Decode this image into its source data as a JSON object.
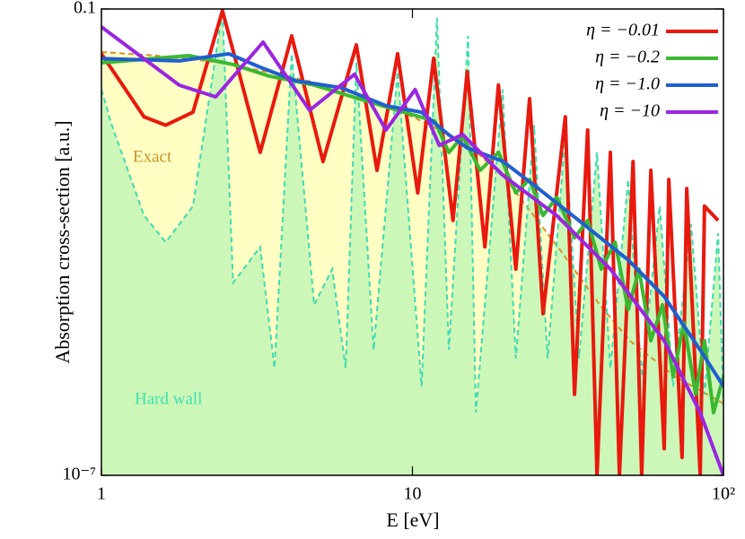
{
  "chart_data": {
    "type": "line",
    "xlabel": "E [eV]",
    "ylabel": "Absorption cross-section [a.u.]",
    "xscale": "log",
    "yscale": "log",
    "xlim": [
      1,
      100
    ],
    "xticks": [
      1,
      10,
      {
        "value": 100,
        "label": "10²"
      }
    ],
    "ylim": [
      1e-07,
      0.1
    ],
    "yticks": [
      {
        "value": 0.1,
        "label": "0.1"
      },
      {
        "value": 1e-07,
        "label": "10⁻⁷"
      }
    ],
    "legend": "upper right",
    "areas": [
      {
        "name": "Exact",
        "fill": "#ffffc4",
        "color": "#d9902a",
        "x": [
          1,
          1.5,
          2.45,
          4,
          6,
          10,
          15,
          20,
          30,
          40,
          50,
          70,
          100
        ],
        "values": [
          0.0279,
          0.0251,
          0.0203,
          0.0136,
          0.0092,
          0.0041,
          0.00186,
          0.00064,
          7.7e-05,
          1.56e-05,
          5.4e-06,
          1.86e-06,
          8.4e-07
        ]
      },
      {
        "name": "Hard wall",
        "fill": "#ccf7b8",
        "color": "#3ddcb0",
        "x": [
          1,
          1.08,
          1.37,
          1.61,
          1.97,
          2.45,
          2.65,
          3.24,
          3.6,
          4.09,
          4.83,
          5.52,
          6.1,
          6.6,
          7.5,
          8.96,
          10.7,
          12.0,
          13.1,
          15.1,
          16.0,
          19.5,
          21.5,
          24.6,
          27.2,
          31.0,
          34.3,
          39.2,
          43.3,
          49.4,
          54.6,
          62.4,
          68.9,
          78.7,
          86.9,
          96.1,
          100
        ],
        "values": [
          0.0092,
          0.0032,
          0.00022,
          0.0001,
          0.00029,
          0.095,
          3e-05,
          8.7e-05,
          2.4e-06,
          0.0265,
          1.56e-05,
          4.5e-05,
          2.4e-06,
          0.0203,
          4.1e-06,
          0.0156,
          1.4e-06,
          0.077,
          4.1e-06,
          0.045,
          6.4e-07,
          0.0092,
          3.2e-06,
          0.0032,
          3.2e-06,
          0.0024,
          3.2e-06,
          0.00143,
          2.4e-06,
          0.00064,
          1.86e-06,
          0.00029,
          1.4e-06,
          0.00017,
          1.1e-06,
          0.00013,
          8.4e-07
        ]
      }
    ],
    "series": [
      {
        "name": "η = −0.01",
        "color": "#e8190e",
        "x": [
          1,
          1.37,
          1.61,
          1.97,
          2.45,
          3.24,
          4.09,
          5.16,
          6.6,
          7.69,
          8.96,
          10.4,
          11.7,
          13.5,
          15.0,
          17.1,
          18.9,
          21.5,
          23.8,
          26.3,
          31.0,
          33.2,
          36.6,
          39.2,
          43.3,
          46.3,
          51.2,
          54.6,
          58.4,
          64.5,
          66.7,
          73.6,
          76.2,
          84.2,
          86.9,
          96.1
        ],
        "values": [
          0.0265,
          0.0041,
          0.0032,
          0.0047,
          0.095,
          0.00143,
          0.045,
          0.00109,
          0.0345,
          0.00084,
          0.0265,
          0.00043,
          0.0232,
          0.00019,
          0.0156,
          8.7e-05,
          0.0105,
          4.5e-05,
          0.007,
          1.2e-05,
          0.0041,
          1.1e-06,
          0.00277,
          1e-07,
          0.00143,
          1e-07,
          0.00109,
          1e-07,
          0.00084,
          2.2e-07,
          0.00064,
          1.7e-07,
          0.00049,
          1e-07,
          0.00029,
          0.00019
        ]
      },
      {
        "name": "η = −0.2",
        "color": "#3cb832",
        "x": [
          1,
          1.91,
          2.65,
          3.46,
          4.83,
          6.73,
          9.39,
          11.8,
          13.1,
          14.5,
          16.5,
          18.9,
          21.5,
          23.8,
          26.3,
          29.1,
          33.2,
          36.6,
          40.5,
          44.8,
          49.4,
          53.5,
          58.4,
          63.7,
          68.9,
          74.6,
          81.4,
          86.9,
          92.9,
          100
        ],
        "values": [
          0.0203,
          0.0251,
          0.0193,
          0.0137,
          0.0105,
          0.007,
          0.0047,
          0.0036,
          0.00143,
          0.0023,
          0.00084,
          0.00143,
          0.00043,
          0.00064,
          0.00022,
          0.00038,
          0.000114,
          0.00019,
          4.5e-05,
          0.0001,
          1.36e-05,
          4.5e-05,
          5.4e-06,
          1.56e-05,
          1.86e-06,
          9.2e-06,
          1.1e-06,
          5.4e-06,
          6.4e-07,
          1.86e-06
        ]
      },
      {
        "name": "η = −1.0",
        "color": "#1f5fd0",
        "x": [
          1,
          1.78,
          2.57,
          3.24,
          4.23,
          5.9,
          8.22,
          10.7,
          13.1,
          15.0,
          19.5,
          25.4,
          35.5,
          49.4,
          64.5,
          84.2,
          100
        ],
        "values": [
          0.023,
          0.0215,
          0.0265,
          0.0178,
          0.0119,
          0.0097,
          0.0057,
          0.0047,
          0.0024,
          0.00163,
          0.0011,
          0.00049,
          0.00017,
          5.9e-05,
          2e-05,
          4.1e-06,
          1.4e-06
        ]
      },
      {
        "name": "η = −10",
        "color": "#9a26e0",
        "x": [
          1,
          1.78,
          2.33,
          3.31,
          4.67,
          6.51,
          8.22,
          10.2,
          12.2,
          14.5,
          19.5,
          29.1,
          43.3,
          64.5,
          84.2,
          100
        ],
        "values": [
          0.0588,
          0.01045,
          0.0074,
          0.0374,
          0.00497,
          0.0144,
          0.00277,
          0.00917,
          0.00176,
          0.00243,
          0.00073,
          0.00022,
          4.5e-05,
          5.4e-06,
          6.4e-07,
          1e-07
        ]
      }
    ]
  }
}
